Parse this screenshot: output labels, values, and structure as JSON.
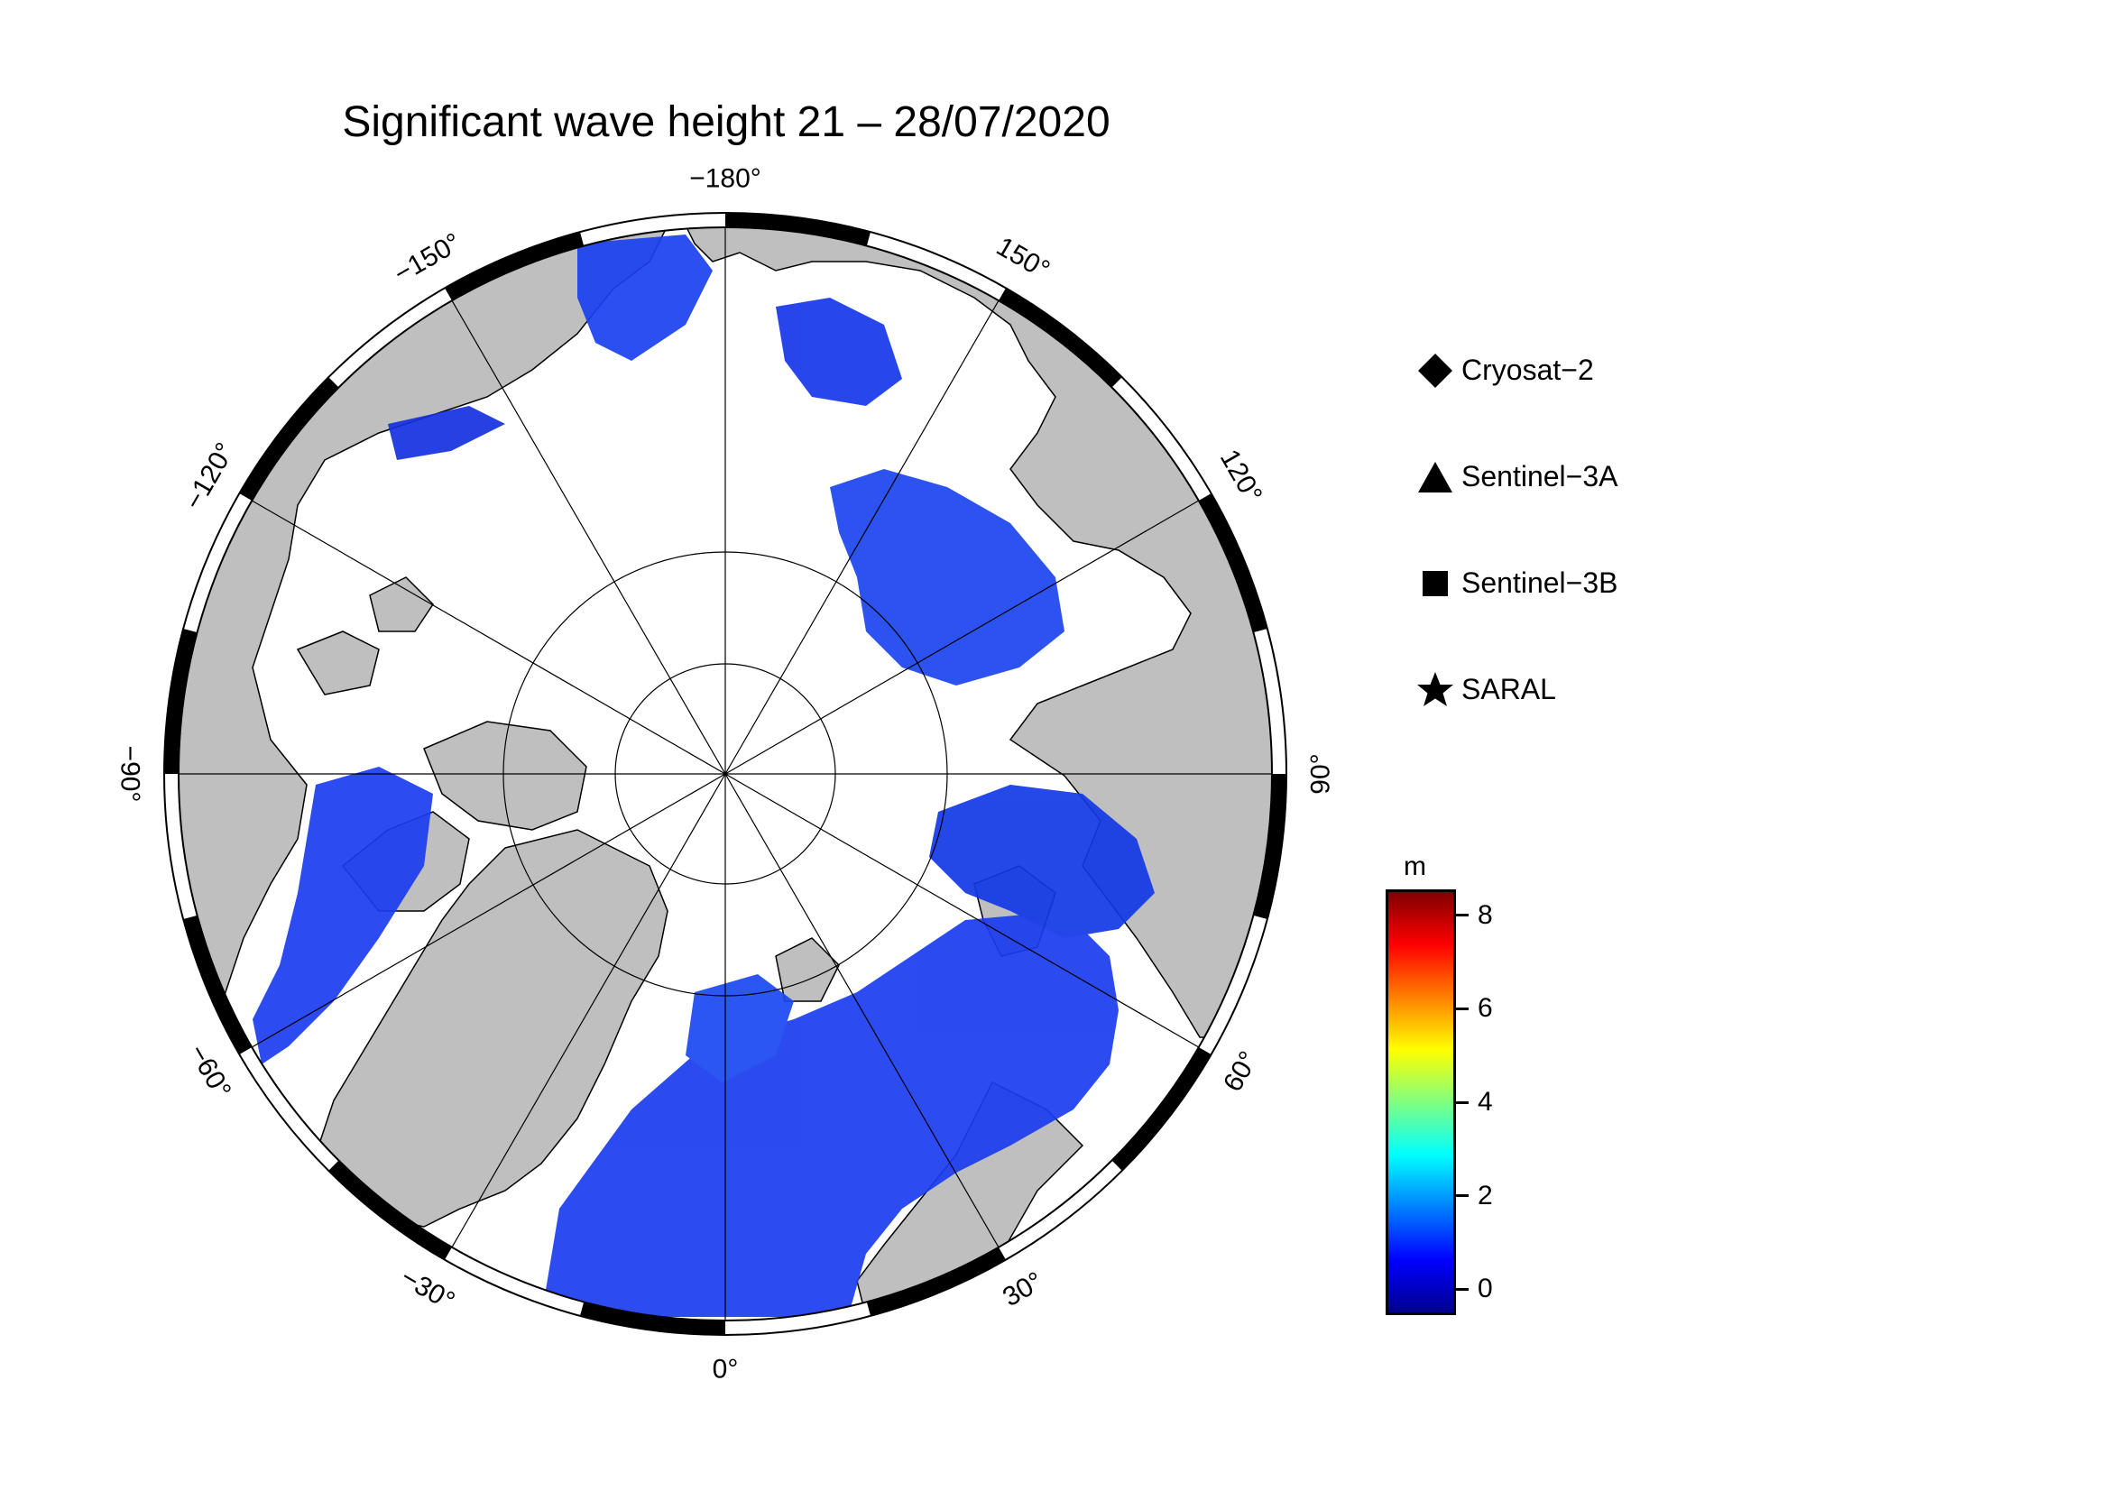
{
  "title": "Significant wave height 21 – 28/07/2020",
  "map": {
    "projection": "north-polar-stereographic",
    "meridian_labels": [
      "0°",
      "30°",
      "60°",
      "90°",
      "120°",
      "150°",
      "−180°",
      "−150°",
      "−120°",
      "−90°",
      "−60°",
      "−30°"
    ],
    "meridian_values": [
      0,
      30,
      60,
      90,
      120,
      150,
      180,
      -150,
      -120,
      -90,
      -60,
      -30
    ],
    "parallels": [
      80,
      70
    ],
    "land_color": "#bfbfbf",
    "ice_color": "#ffffff",
    "frame_color": "#000000"
  },
  "legend": {
    "items": [
      {
        "label": "Cryosat−2",
        "icon": "diamond-icon"
      },
      {
        "label": "Sentinel−3A",
        "icon": "triangle-icon"
      },
      {
        "label": "Sentinel−3B",
        "icon": "square-icon"
      },
      {
        "label": "SARAL",
        "icon": "star-icon"
      }
    ]
  },
  "colorbar": {
    "unit": "m",
    "min": -0.5,
    "max": 8.5,
    "ticks": [
      0,
      2,
      4,
      6,
      8
    ],
    "tick_labels": [
      "0",
      "2",
      "4",
      "6",
      "8"
    ],
    "colors": [
      "#00008f",
      "#0000ff",
      "#0080ff",
      "#00ffff",
      "#80ff80",
      "#ffff00",
      "#ff8000",
      "#ff0000",
      "#800000"
    ]
  }
}
